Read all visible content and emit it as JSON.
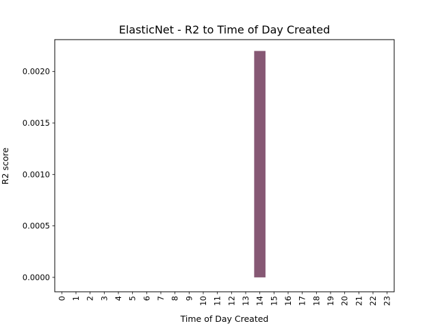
{
  "chart_data": {
    "type": "bar",
    "title": "ElasticNet - R2 to Time of Day Created",
    "xlabel": "Time of Day Created",
    "ylabel": "R2 score",
    "categories": [
      "0",
      "1",
      "2",
      "3",
      "4",
      "5",
      "6",
      "7",
      "8",
      "9",
      "10",
      "11",
      "12",
      "13",
      "14",
      "15",
      "16",
      "17",
      "18",
      "19",
      "20",
      "21",
      "22",
      "23"
    ],
    "values": [
      0,
      0,
      0,
      0,
      0,
      0,
      0,
      0,
      0,
      0,
      0,
      0,
      0,
      0,
      0.0022,
      0,
      0,
      0,
      0,
      0,
      0,
      0,
      0,
      0
    ],
    "yticks": [
      "0.0000",
      "0.0005",
      "0.0010",
      "0.0015",
      "0.0020"
    ],
    "ylim": [
      -0.00014,
      0.00231
    ],
    "grid": false,
    "bar_color": "#865874",
    "xtick_rotation": "vertical"
  }
}
